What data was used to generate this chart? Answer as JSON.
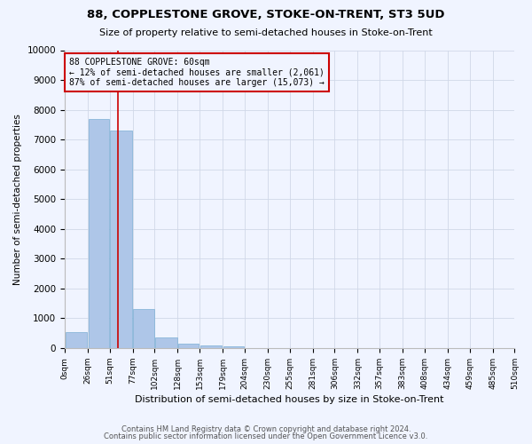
{
  "title": "88, COPPLESTONE GROVE, STOKE-ON-TRENT, ST3 5UD",
  "subtitle": "Size of property relative to semi-detached houses in Stoke-on-Trent",
  "xlabel": "Distribution of semi-detached houses by size in Stoke-on-Trent",
  "ylabel": "Number of semi-detached properties",
  "annotation_title": "88 COPPLESTONE GROVE: 60sqm",
  "annotation_line1": "← 12% of semi-detached houses are smaller (2,061)",
  "annotation_line2": "87% of semi-detached houses are larger (15,073) →",
  "footer1": "Contains HM Land Registry data © Crown copyright and database right 2024.",
  "footer2": "Contains public sector information licensed under the Open Government Licence v3.0.",
  "property_size_sqm": 60,
  "bin_edges": [
    0,
    26,
    51,
    77,
    102,
    128,
    153,
    179,
    204,
    230,
    255,
    281,
    306,
    332,
    357,
    383,
    408,
    434,
    459,
    485,
    510
  ],
  "bar_heights": [
    550,
    7700,
    7300,
    1300,
    350,
    150,
    100,
    70,
    0,
    0,
    0,
    0,
    0,
    0,
    0,
    0,
    0,
    0,
    0,
    0
  ],
  "bar_color": "#aec6e8",
  "bar_edge_color": "#7bafd4",
  "grid_color": "#d0d8e8",
  "annotation_box_color": "#cc0000",
  "vline_color": "#cc0000",
  "ylim": [
    0,
    10000
  ],
  "yticks": [
    0,
    1000,
    2000,
    3000,
    4000,
    5000,
    6000,
    7000,
    8000,
    9000,
    10000
  ],
  "bg_color": "#f0f4ff"
}
